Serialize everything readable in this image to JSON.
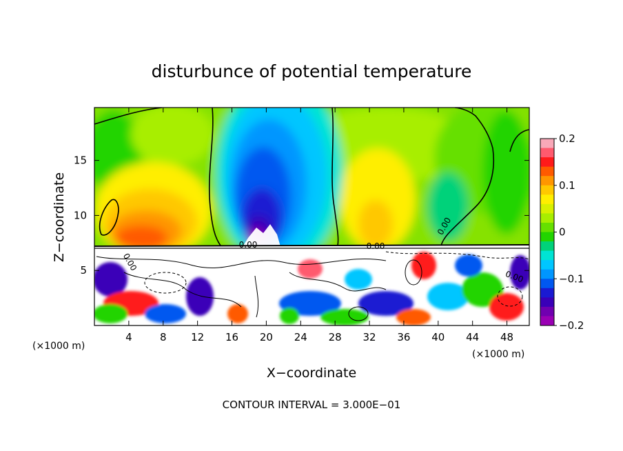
{
  "chart_data": {
    "type": "heatmap",
    "title": "disturbunce of potential temperature",
    "xlabel": "X−coordinate",
    "ylabel": "Z−coordinate",
    "x_unit_left": "(×1000 m)",
    "x_unit_right": "(×1000 m)",
    "xlim": [
      0,
      50.6
    ],
    "ylim": [
      0,
      19.8
    ],
    "x_ticks": [
      4,
      8,
      12,
      16,
      20,
      24,
      28,
      32,
      36,
      40,
      44,
      48
    ],
    "y_ticks": [
      5,
      10,
      15
    ],
    "colorbar": {
      "range": [
        -0.2,
        0.2
      ],
      "ticks": [
        "0.2",
        "0.1",
        "0",
        "−0.1",
        "−0.2"
      ],
      "colors": [
        "#f9a8b8",
        "#ff5a6e",
        "#ff1a1a",
        "#ff5a00",
        "#ff9600",
        "#ffc800",
        "#ffee00",
        "#d8f000",
        "#a8ee00",
        "#66e000",
        "#22d400",
        "#00d27a",
        "#00e4d4",
        "#00c6ff",
        "#0096ff",
        "#0058f0",
        "#1a1ad2",
        "#3a00b8",
        "#7000b0",
        "#9a00b4"
      ]
    },
    "contour_labels": [
      "0.00",
      "0.00",
      "0.00",
      "0.00",
      "0.00"
    ],
    "footer": "CONTOUR INTERVAL = 3.000E−01"
  }
}
